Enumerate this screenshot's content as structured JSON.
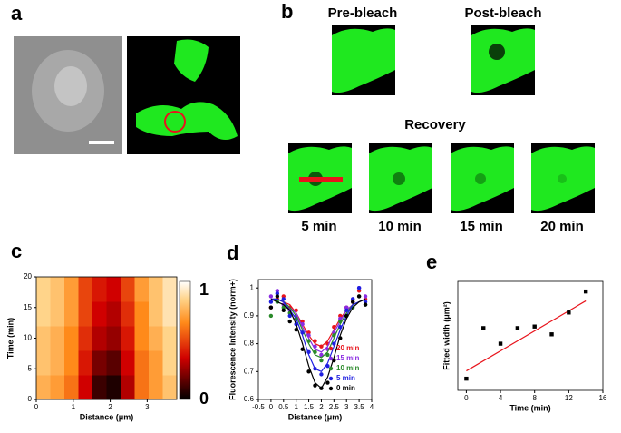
{
  "panels": {
    "a": "a",
    "b": "b"
  },
  "panel_b": {
    "pre": "Pre-bleach",
    "post": "Post-bleach",
    "recovery": "Recovery",
    "times": [
      "5 min",
      "10 min",
      "15 min",
      "20 min"
    ]
  },
  "chart_data": [
    {
      "type": "heatmap",
      "label": "c",
      "xlabel": "Distance (μm)",
      "ylabel": "Time (min)",
      "x": [
        0.19,
        0.57,
        0.95,
        1.33,
        1.71,
        2.09,
        2.47,
        2.85,
        3.23,
        3.61
      ],
      "y": [
        2,
        6,
        10,
        14,
        18
      ],
      "values": [
        [
          0.75,
          0.7,
          0.6,
          0.35,
          0.1,
          0.05,
          0.3,
          0.6,
          0.7,
          0.8
        ],
        [
          0.8,
          0.75,
          0.65,
          0.4,
          0.2,
          0.15,
          0.35,
          0.6,
          0.7,
          0.85
        ],
        [
          0.8,
          0.75,
          0.65,
          0.45,
          0.3,
          0.25,
          0.4,
          0.65,
          0.75,
          0.85
        ],
        [
          0.85,
          0.8,
          0.7,
          0.5,
          0.35,
          0.3,
          0.45,
          0.65,
          0.8,
          0.9
        ],
        [
          0.85,
          0.8,
          0.7,
          0.5,
          0.4,
          0.35,
          0.5,
          0.7,
          0.8,
          0.9
        ]
      ],
      "xlim": [
        0,
        3.8
      ],
      "xticks": [
        0,
        1,
        2,
        3
      ],
      "ylim": [
        0,
        20
      ],
      "yticks": [
        0,
        5,
        10,
        15,
        20
      ],
      "zlim": [
        0,
        1
      ],
      "zticks": [
        0,
        1
      ]
    },
    {
      "type": "scatter",
      "label": "d",
      "xlabel": "Distance (μm)",
      "ylabel": "Fluorescence Intensity (norm+)",
      "x": [
        0,
        0.25,
        0.5,
        0.75,
        1,
        1.25,
        1.5,
        1.75,
        2,
        2.25,
        2.5,
        2.75,
        3,
        3.25,
        3.5,
        3.75
      ],
      "series": [
        {
          "name": "20 min",
          "color": "#e8141c",
          "values": [
            0.93,
            0.96,
            0.97,
            0.93,
            0.92,
            0.88,
            0.84,
            0.81,
            0.79,
            0.8,
            0.86,
            0.9,
            0.93,
            0.95,
            0.99,
            0.96
          ],
          "fit": [
            0.96,
            0.96,
            0.95,
            0.94,
            0.91,
            0.87,
            0.83,
            0.8,
            0.79,
            0.81,
            0.85,
            0.89,
            0.92,
            0.94,
            0.95,
            0.96
          ]
        },
        {
          "name": "15 min",
          "color": "#8a2be2",
          "values": [
            0.97,
            0.99,
            0.94,
            0.92,
            0.9,
            0.87,
            0.83,
            0.79,
            0.76,
            0.78,
            0.84,
            0.89,
            0.93,
            0.96,
            1.0,
            0.97
          ],
          "fit": [
            0.96,
            0.96,
            0.95,
            0.93,
            0.91,
            0.86,
            0.82,
            0.78,
            0.77,
            0.79,
            0.84,
            0.88,
            0.92,
            0.94,
            0.95,
            0.96
          ]
        },
        {
          "name": "10 min",
          "color": "#2a8a2a",
          "values": [
            0.9,
            0.95,
            0.93,
            0.91,
            0.89,
            0.84,
            0.81,
            0.77,
            0.74,
            0.76,
            0.83,
            0.88,
            0.9,
            0.93,
            0.97,
            0.94
          ],
          "fit": [
            0.96,
            0.96,
            0.95,
            0.93,
            0.9,
            0.85,
            0.8,
            0.76,
            0.75,
            0.77,
            0.82,
            0.87,
            0.91,
            0.94,
            0.95,
            0.96
          ]
        },
        {
          "name": "5 min",
          "color": "#1e1ee0",
          "values": [
            0.95,
            0.98,
            0.96,
            0.9,
            0.87,
            0.84,
            0.77,
            0.71,
            0.69,
            0.72,
            0.8,
            0.86,
            0.92,
            0.96,
            1.0,
            0.95
          ],
          "fit": [
            0.96,
            0.96,
            0.95,
            0.92,
            0.89,
            0.83,
            0.76,
            0.71,
            0.7,
            0.73,
            0.79,
            0.85,
            0.9,
            0.94,
            0.95,
            0.96
          ]
        },
        {
          "name": "0 min",
          "color": "#000000",
          "values": [
            0.93,
            0.97,
            0.92,
            0.88,
            0.85,
            0.78,
            0.7,
            0.65,
            0.64,
            0.66,
            0.74,
            0.82,
            0.9,
            0.95,
            0.97,
            0.94
          ],
          "fit": [
            0.96,
            0.95,
            0.94,
            0.92,
            0.87,
            0.8,
            0.72,
            0.66,
            0.64,
            0.68,
            0.75,
            0.83,
            0.89,
            0.93,
            0.95,
            0.96
          ]
        }
      ],
      "xlim": [
        -0.5,
        4
      ],
      "xticks": [
        -0.5,
        0,
        0.5,
        1,
        1.5,
        2,
        2.5,
        3,
        3.5,
        4
      ],
      "ylim": [
        0.6,
        1.03
      ],
      "yticks": [
        0.6,
        0.7,
        0.8,
        0.9,
        1
      ],
      "legend": "lower right"
    },
    {
      "type": "scatter",
      "label": "e",
      "xlabel": "Time (min)",
      "ylabel": "Fitted width (μm²)",
      "x": [
        0,
        2,
        4,
        6,
        8,
        10,
        12,
        14
      ],
      "values": [
        0.35,
        1.0,
        0.8,
        1.0,
        1.02,
        0.92,
        1.2,
        1.47
      ],
      "color": "#000000",
      "fit": {
        "x": [
          0,
          14
        ],
        "values": [
          0.45,
          1.35
        ],
        "color": "#e8141c"
      },
      "xlim": [
        -1,
        16
      ],
      "xticks": [
        0,
        4,
        8,
        12,
        16
      ],
      "ylim": [
        0.2,
        1.6
      ]
    }
  ]
}
